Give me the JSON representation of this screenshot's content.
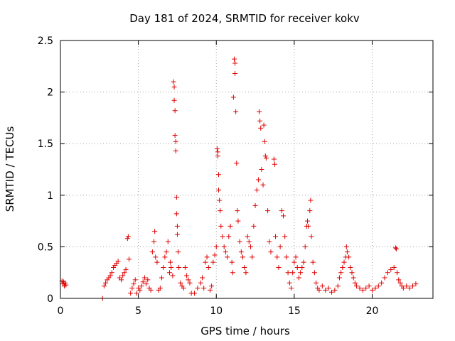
{
  "chart_data": {
    "type": "scatter",
    "title": "Day 181 of 2024, SRMTID for receiver kokv",
    "xlabel": "GPS time / hours",
    "ylabel": "SRMTID / TECUs",
    "xlim": [
      0,
      23.9
    ],
    "ylim": [
      0,
      2.5
    ],
    "xticks": [
      0,
      5,
      10,
      15,
      20
    ],
    "xtick_labels": [
      "0",
      "5",
      "10",
      "15",
      "20"
    ],
    "yticks": [
      0,
      0.5,
      1,
      1.5,
      2,
      2.5
    ],
    "ytick_labels": [
      "0",
      "0.5",
      "1",
      "1.5",
      "2",
      "2.5"
    ],
    "grid": true,
    "marker": "+",
    "series": [
      {
        "name": "SRMTID",
        "color": "#e00000",
        "points": [
          [
            0.1,
            0.17
          ],
          [
            0.15,
            0.14
          ],
          [
            0.2,
            0.16
          ],
          [
            0.25,
            0.12
          ],
          [
            0.3,
            0.15
          ],
          [
            0.35,
            0.13
          ],
          [
            2.7,
            0.0
          ],
          [
            2.8,
            0.12
          ],
          [
            2.9,
            0.15
          ],
          [
            3.0,
            0.18
          ],
          [
            3.1,
            0.2
          ],
          [
            3.2,
            0.22
          ],
          [
            3.3,
            0.25
          ],
          [
            3.4,
            0.3
          ],
          [
            3.5,
            0.32
          ],
          [
            3.6,
            0.34
          ],
          [
            3.7,
            0.36
          ],
          [
            3.8,
            0.2
          ],
          [
            3.9,
            0.18
          ],
          [
            4.0,
            0.22
          ],
          [
            4.1,
            0.25
          ],
          [
            4.2,
            0.28
          ],
          [
            4.3,
            0.58
          ],
          [
            4.35,
            0.6
          ],
          [
            4.4,
            0.38
          ],
          [
            4.5,
            0.05
          ],
          [
            4.6,
            0.1
          ],
          [
            4.7,
            0.14
          ],
          [
            4.8,
            0.18
          ],
          [
            4.9,
            0.05
          ],
          [
            5.0,
            0.1
          ],
          [
            5.1,
            0.08
          ],
          [
            5.2,
            0.12
          ],
          [
            5.3,
            0.16
          ],
          [
            5.4,
            0.2
          ],
          [
            5.5,
            0.14
          ],
          [
            5.6,
            0.18
          ],
          [
            5.7,
            0.1
          ],
          [
            5.8,
            0.08
          ],
          [
            5.9,
            0.45
          ],
          [
            6.0,
            0.55
          ],
          [
            6.05,
            0.65
          ],
          [
            6.1,
            0.4
          ],
          [
            6.2,
            0.35
          ],
          [
            6.3,
            0.08
          ],
          [
            6.4,
            0.1
          ],
          [
            6.5,
            0.2
          ],
          [
            6.6,
            0.3
          ],
          [
            6.7,
            0.4
          ],
          [
            6.8,
            0.45
          ],
          [
            6.9,
            0.55
          ],
          [
            7.0,
            0.25
          ],
          [
            7.05,
            0.35
          ],
          [
            7.1,
            0.3
          ],
          [
            7.2,
            0.22
          ],
          [
            7.25,
            2.1
          ],
          [
            7.3,
            2.05
          ],
          [
            7.3,
            1.92
          ],
          [
            7.35,
            1.82
          ],
          [
            7.35,
            1.58
          ],
          [
            7.4,
            1.52
          ],
          [
            7.4,
            1.43
          ],
          [
            7.45,
            0.98
          ],
          [
            7.45,
            0.82
          ],
          [
            7.5,
            0.7
          ],
          [
            7.5,
            0.62
          ],
          [
            7.55,
            0.45
          ],
          [
            7.6,
            0.3
          ],
          [
            7.7,
            0.15
          ],
          [
            7.8,
            0.12
          ],
          [
            7.9,
            0.1
          ],
          [
            8.0,
            0.3
          ],
          [
            8.1,
            0.22
          ],
          [
            8.2,
            0.18
          ],
          [
            8.3,
            0.15
          ],
          [
            8.4,
            0.05
          ],
          [
            8.6,
            0.05
          ],
          [
            8.8,
            0.1
          ],
          [
            9.0,
            0.15
          ],
          [
            9.1,
            0.2
          ],
          [
            9.2,
            0.1
          ],
          [
            9.3,
            0.35
          ],
          [
            9.4,
            0.4
          ],
          [
            9.5,
            0.3
          ],
          [
            9.6,
            0.08
          ],
          [
            9.7,
            0.12
          ],
          [
            9.8,
            0.35
          ],
          [
            9.9,
            0.42
          ],
          [
            10.0,
            0.5
          ],
          [
            10.05,
            1.45
          ],
          [
            10.1,
            1.42
          ],
          [
            10.1,
            1.38
          ],
          [
            10.15,
            1.2
          ],
          [
            10.15,
            1.05
          ],
          [
            10.2,
            0.95
          ],
          [
            10.25,
            0.85
          ],
          [
            10.3,
            0.7
          ],
          [
            10.4,
            0.6
          ],
          [
            10.5,
            0.5
          ],
          [
            10.6,
            0.45
          ],
          [
            10.7,
            0.4
          ],
          [
            10.8,
            0.6
          ],
          [
            10.9,
            0.7
          ],
          [
            11.0,
            0.35
          ],
          [
            11.05,
            0.25
          ],
          [
            11.15,
            2.32
          ],
          [
            11.2,
            2.28
          ],
          [
            11.2,
            2.18
          ],
          [
            11.1,
            1.95
          ],
          [
            11.25,
            1.81
          ],
          [
            11.3,
            1.31
          ],
          [
            11.35,
            0.85
          ],
          [
            11.4,
            0.75
          ],
          [
            11.5,
            0.55
          ],
          [
            11.6,
            0.45
          ],
          [
            11.7,
            0.4
          ],
          [
            11.8,
            0.3
          ],
          [
            11.9,
            0.25
          ],
          [
            12.0,
            0.6
          ],
          [
            12.1,
            0.55
          ],
          [
            12.2,
            0.5
          ],
          [
            12.3,
            0.4
          ],
          [
            12.4,
            0.7
          ],
          [
            12.5,
            0.9
          ],
          [
            12.6,
            1.05
          ],
          [
            12.7,
            1.15
          ],
          [
            12.75,
            1.81
          ],
          [
            12.8,
            1.72
          ],
          [
            12.85,
            1.65
          ],
          [
            12.9,
            1.25
          ],
          [
            13.0,
            1.1
          ],
          [
            13.05,
            1.68
          ],
          [
            13.1,
            1.52
          ],
          [
            13.15,
            1.38
          ],
          [
            13.2,
            1.36
          ],
          [
            13.3,
            0.85
          ],
          [
            13.4,
            0.55
          ],
          [
            13.5,
            0.45
          ],
          [
            13.7,
            1.35
          ],
          [
            13.75,
            1.3
          ],
          [
            13.8,
            0.6
          ],
          [
            13.9,
            0.4
          ],
          [
            14.0,
            0.3
          ],
          [
            14.1,
            0.5
          ],
          [
            14.2,
            0.85
          ],
          [
            14.3,
            0.8
          ],
          [
            14.4,
            0.6
          ],
          [
            14.5,
            0.4
          ],
          [
            14.6,
            0.25
          ],
          [
            14.7,
            0.15
          ],
          [
            14.8,
            0.1
          ],
          [
            14.9,
            0.25
          ],
          [
            15.0,
            0.35
          ],
          [
            15.1,
            0.4
          ],
          [
            15.2,
            0.3
          ],
          [
            15.3,
            0.2
          ],
          [
            15.4,
            0.25
          ],
          [
            15.5,
            0.3
          ],
          [
            15.6,
            0.35
          ],
          [
            15.7,
            0.5
          ],
          [
            15.8,
            0.7
          ],
          [
            15.85,
            0.75
          ],
          [
            15.9,
            0.7
          ],
          [
            16.0,
            0.85
          ],
          [
            16.05,
            0.95
          ],
          [
            16.1,
            0.6
          ],
          [
            16.2,
            0.35
          ],
          [
            16.3,
            0.25
          ],
          [
            16.4,
            0.15
          ],
          [
            16.5,
            0.1
          ],
          [
            16.6,
            0.08
          ],
          [
            16.8,
            0.12
          ],
          [
            17.0,
            0.08
          ],
          [
            17.2,
            0.1
          ],
          [
            17.4,
            0.06
          ],
          [
            17.6,
            0.08
          ],
          [
            17.8,
            0.12
          ],
          [
            17.9,
            0.2
          ],
          [
            18.0,
            0.25
          ],
          [
            18.1,
            0.3
          ],
          [
            18.2,
            0.35
          ],
          [
            18.3,
            0.4
          ],
          [
            18.35,
            0.5
          ],
          [
            18.4,
            0.45
          ],
          [
            18.5,
            0.4
          ],
          [
            18.6,
            0.3
          ],
          [
            18.7,
            0.25
          ],
          [
            18.8,
            0.2
          ],
          [
            18.9,
            0.15
          ],
          [
            19.0,
            0.12
          ],
          [
            19.2,
            0.1
          ],
          [
            19.4,
            0.08
          ],
          [
            19.6,
            0.1
          ],
          [
            19.8,
            0.12
          ],
          [
            20.0,
            0.08
          ],
          [
            20.2,
            0.1
          ],
          [
            20.4,
            0.12
          ],
          [
            20.6,
            0.15
          ],
          [
            20.8,
            0.2
          ],
          [
            21.0,
            0.25
          ],
          [
            21.2,
            0.28
          ],
          [
            21.4,
            0.3
          ],
          [
            21.5,
            0.49
          ],
          [
            21.55,
            0.48
          ],
          [
            21.6,
            0.25
          ],
          [
            21.7,
            0.18
          ],
          [
            21.8,
            0.15
          ],
          [
            21.9,
            0.12
          ],
          [
            22.0,
            0.1
          ],
          [
            22.2,
            0.12
          ],
          [
            22.4,
            0.1
          ],
          [
            22.6,
            0.12
          ],
          [
            22.8,
            0.14
          ]
        ]
      }
    ]
  }
}
